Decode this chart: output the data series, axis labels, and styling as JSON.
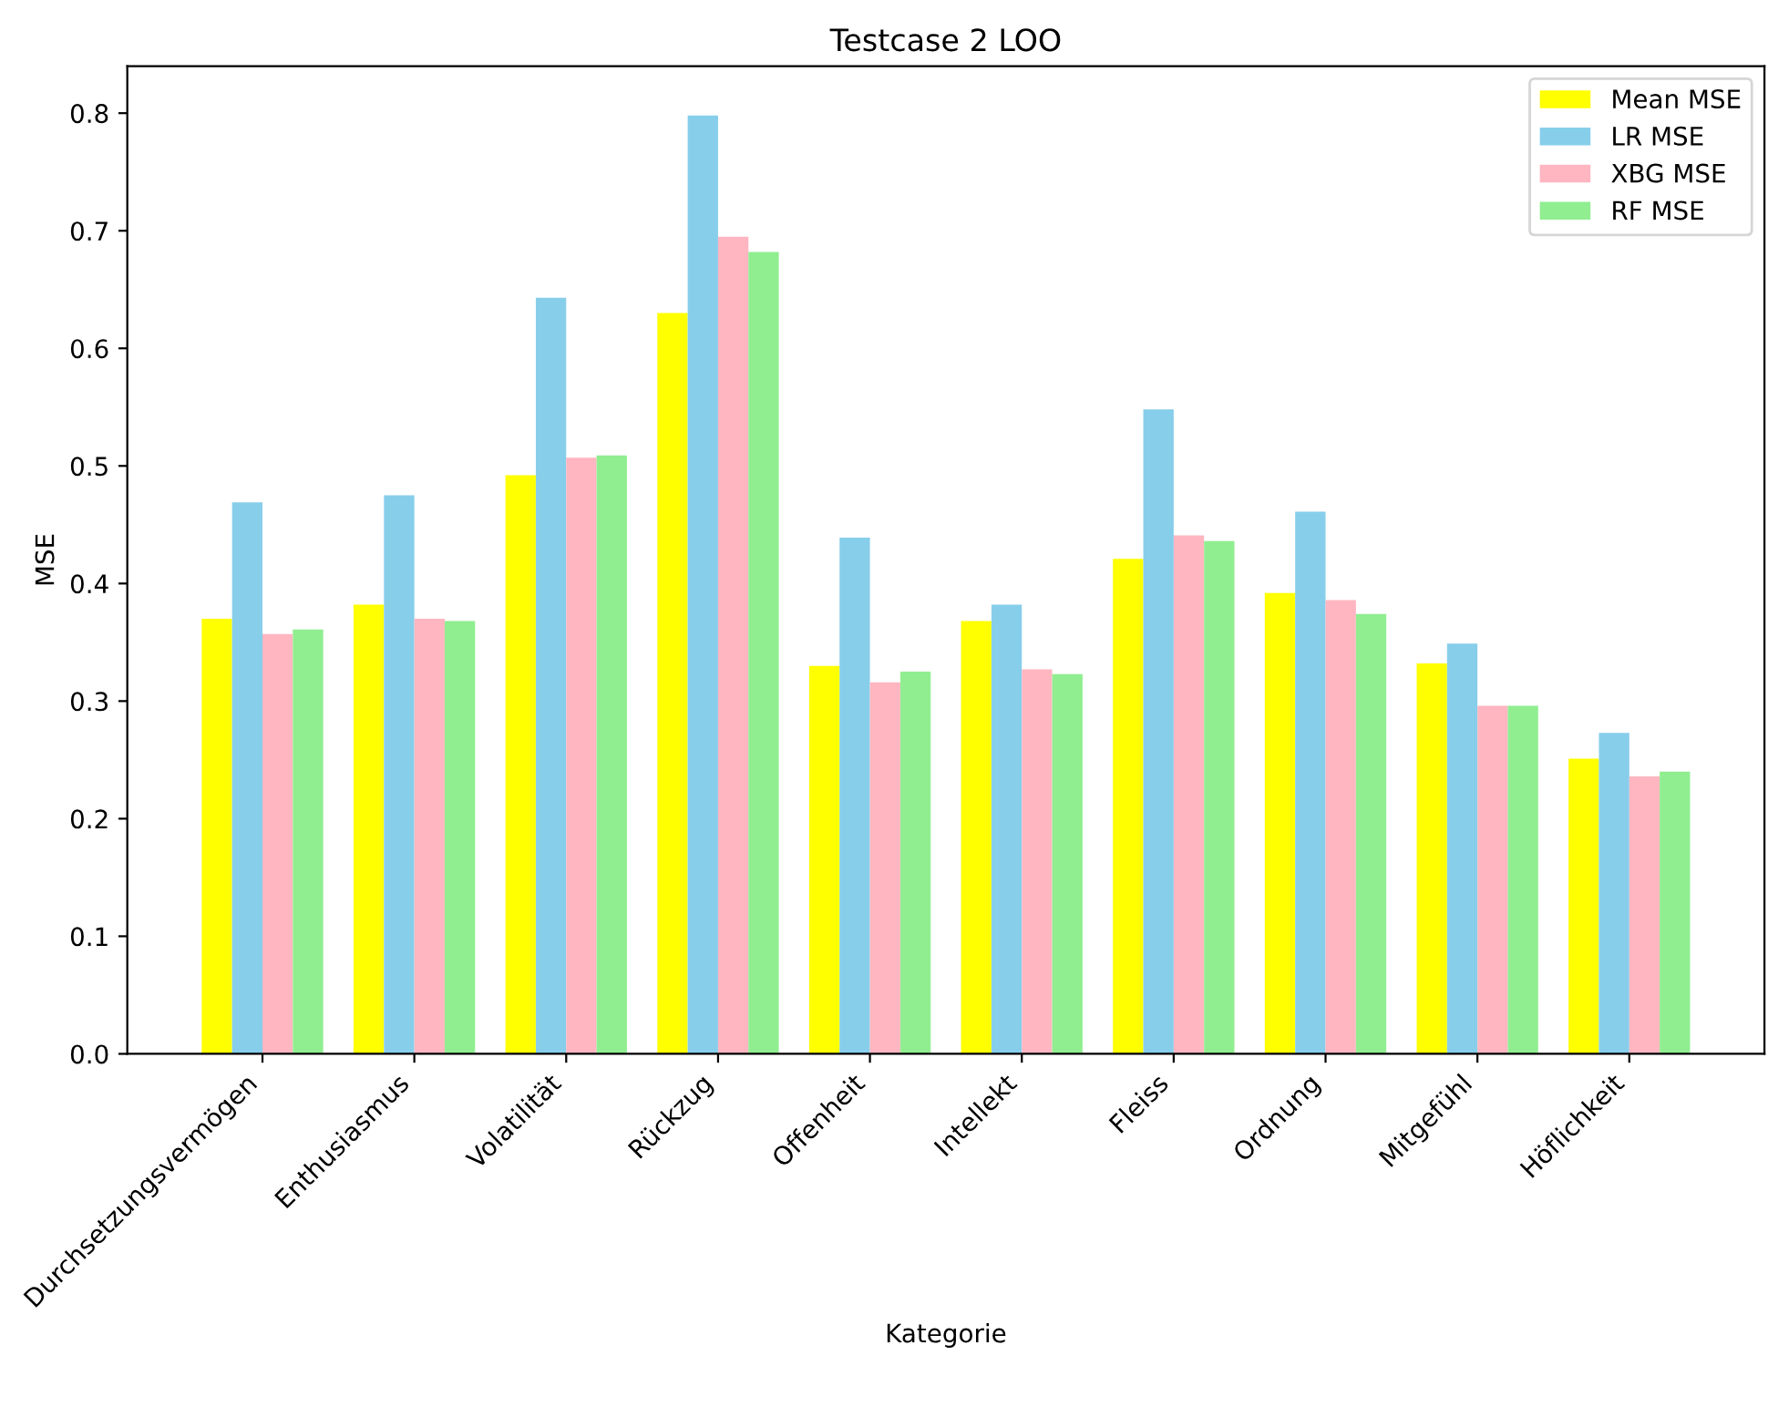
{
  "chart_data": {
    "type": "bar",
    "title": "Testcase 2 LOO",
    "xlabel": "Kategorie",
    "ylabel": "MSE",
    "categories": [
      "Durchsetzungsvermögen",
      "Enthusiasmus",
      "Volatilität",
      "Rückzug",
      "Offenheit",
      "Intellekt",
      "Fleiss",
      "Ordnung",
      "Mitgefühl",
      "Höflichkeit"
    ],
    "series": [
      {
        "name": "Mean MSE",
        "color": "#ffff00",
        "values": [
          0.37,
          0.382,
          0.492,
          0.63,
          0.33,
          0.368,
          0.421,
          0.392,
          0.332,
          0.251
        ]
      },
      {
        "name": "LR MSE",
        "color": "#87ceeb",
        "values": [
          0.469,
          0.475,
          0.643,
          0.798,
          0.439,
          0.382,
          0.548,
          0.461,
          0.349,
          0.273
        ]
      },
      {
        "name": "XBG MSE",
        "color": "#ffb6c1",
        "values": [
          0.357,
          0.37,
          0.507,
          0.695,
          0.316,
          0.327,
          0.441,
          0.386,
          0.296,
          0.236
        ]
      },
      {
        "name": "RF MSE",
        "color": "#90ee90",
        "values": [
          0.361,
          0.368,
          0.509,
          0.682,
          0.325,
          0.323,
          0.436,
          0.374,
          0.296,
          0.24
        ]
      }
    ],
    "ylim": [
      0,
      0.84
    ],
    "yticks": [
      {
        "value": 0,
        "label": "0.0"
      },
      0.1,
      0.2,
      0.3,
      0.4,
      0.5,
      0.6,
      0.7,
      0.8
    ],
    "legend": "top right",
    "grid": false
  }
}
